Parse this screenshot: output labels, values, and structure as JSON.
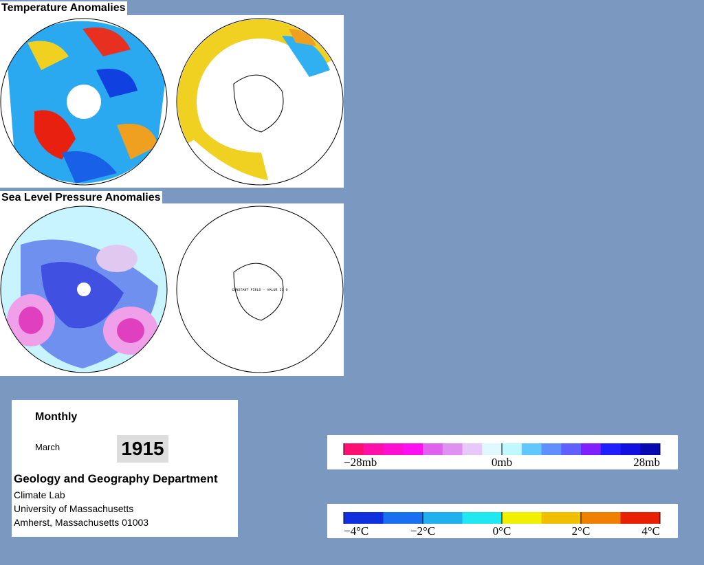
{
  "temperature": {
    "title": "Temperature Anomalies"
  },
  "pressure": {
    "title": "Sea Level Pressure Anomalies",
    "note": "CONSTANT FIELD - VALUE IS 0"
  },
  "info": {
    "period": "Monthly",
    "month": "March",
    "year": "1915",
    "department": "Geology and Geography Department",
    "lab": "Climate Lab",
    "university": "University of Massachusetts",
    "address": "Amherst, Massachusetts 01003"
  },
  "pressure_scale": {
    "colors": [
      "#ff1070",
      "#ff10a8",
      "#ff10d0",
      "#ff10f0",
      "#e060f0",
      "#e090f0",
      "#e8c8f8",
      "#e0f8ff",
      "#c0f8ff",
      "#60c8ff",
      "#6090ff",
      "#6060ff",
      "#8020ff",
      "#2020ff",
      "#1010e0",
      "#0808b0"
    ],
    "labels": [
      "−28mb",
      "0mb",
      "28mb"
    ]
  },
  "temperature_scale": {
    "colors": [
      "#1030e0",
      "#1870f0",
      "#20b0f0",
      "#20e8f0",
      "#f0f000",
      "#f0c000",
      "#f08000",
      "#e82000"
    ],
    "labels": [
      "−4°C",
      "−2°C",
      "0°C",
      "2°C",
      "4°C"
    ]
  }
}
